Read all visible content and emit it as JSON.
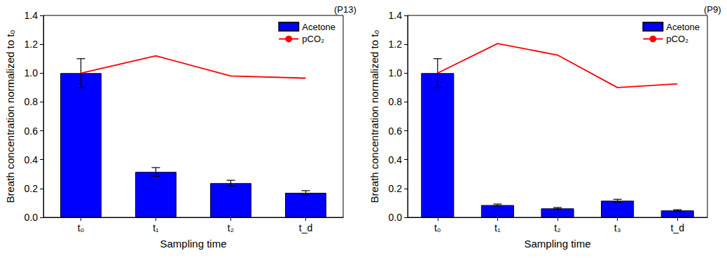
{
  "chart_data": [
    {
      "type": "bar",
      "title": "(P13)",
      "x_label": "Sampling time",
      "y_label": "Breath concentration normalized to t₀",
      "categories": [
        "t₀",
        "t₁",
        "t₂",
        "t_d"
      ],
      "series": [
        {
          "name": "Acetone",
          "type": "bar",
          "color": "#0000ff",
          "values": [
            1.0,
            0.315,
            0.237,
            0.17
          ],
          "errors": [
            0.1,
            0.03,
            0.02,
            0.015
          ]
        },
        {
          "name": "pCO₂",
          "type": "line",
          "color": "#ff0000",
          "marker": "none",
          "values": [
            1.0,
            1.12,
            0.98,
            0.965
          ]
        }
      ],
      "ylim": [
        0,
        1.4
      ],
      "yticks": [
        {
          "value": 0,
          "label": "0.0"
        },
        0.2,
        0.4,
        0.6,
        0.8,
        {
          "value": 1,
          "label": "1.0"
        },
        1.2,
        1.4
      ],
      "grid": false,
      "legend": "upper right"
    },
    {
      "type": "bar",
      "title": "(P9)",
      "x_label": "Sampling time",
      "y_label": "Breath concentration normalized to t₀",
      "categories": [
        "t₀",
        "t₁",
        "t₂",
        "t₃",
        "t_d"
      ],
      "series": [
        {
          "name": "Acetone",
          "type": "bar",
          "color": "#0000ff",
          "values": [
            1.0,
            0.085,
            0.062,
            0.115,
            0.048
          ],
          "errors": [
            0.1,
            0.007,
            0.006,
            0.01,
            0.005
          ]
        },
        {
          "name": "pCO₂",
          "type": "line",
          "color": "#ff0000",
          "marker": "none",
          "values": [
            1.0,
            1.205,
            1.125,
            0.9,
            0.925
          ]
        }
      ],
      "ylim": [
        0,
        1.4
      ],
      "yticks": [
        {
          "value": 0,
          "label": "0.0"
        },
        0.2,
        0.4,
        0.6,
        0.8,
        {
          "value": 1,
          "label": "1.0"
        },
        1.2,
        1.4
      ],
      "grid": false,
      "legend": "upper right"
    }
  ]
}
